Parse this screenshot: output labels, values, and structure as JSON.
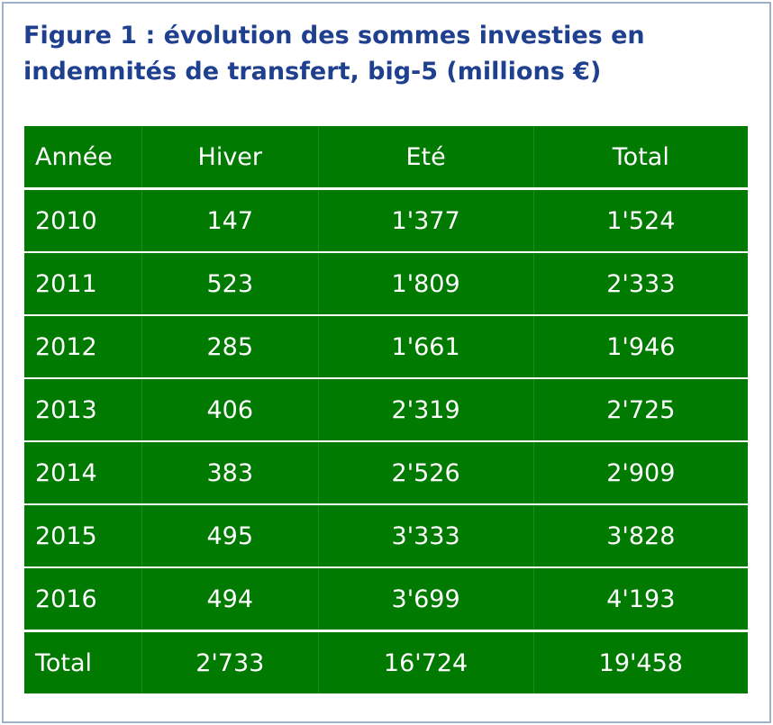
{
  "header": {
    "title": "Figure 1 : évolution des sommes investies en indemnités de transfert, big-5 (millions €)"
  },
  "table": {
    "columns": [
      "Année",
      "Hiver",
      "Eté",
      "Total"
    ],
    "rows": [
      [
        "2010",
        "147",
        "1'377",
        "1'524"
      ],
      [
        "2011",
        "523",
        "1'809",
        "2'333"
      ],
      [
        "2012",
        "285",
        "1'661",
        "1'946"
      ],
      [
        "2013",
        "406",
        "2'319",
        "2'725"
      ],
      [
        "2014",
        "383",
        "2'526",
        "2'909"
      ],
      [
        "2015",
        "495",
        "3'333",
        "3'828"
      ],
      [
        "2016",
        "494",
        "3'699",
        "4'193"
      ]
    ],
    "total": [
      "Total",
      "2'733",
      "16'724",
      "19'458"
    ]
  }
}
